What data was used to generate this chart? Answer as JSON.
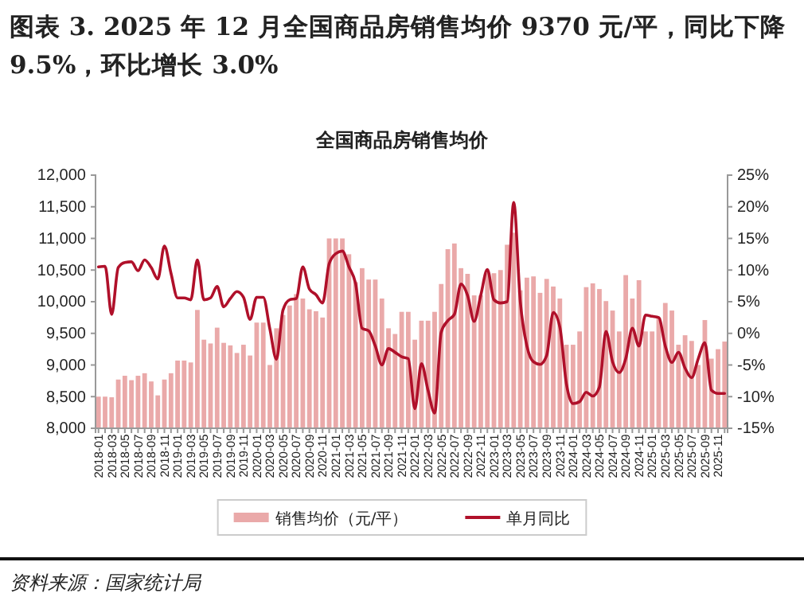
{
  "chart_data": {
    "type": "bar",
    "title": "图表 3. 2025 年 12 月全国商品房销售均价 9370 元/平，同比下降 9.5%，环比增长 3.0%",
    "subtitle": "全国商品房销售均价",
    "annotations": [
      "资料来源：国家统计局"
    ],
    "categories": [
      "2018-01",
      null,
      "2018-03",
      null,
      "2018-05",
      null,
      "2018-07",
      null,
      "2018-09",
      null,
      "2018-11",
      null,
      "2019-01",
      null,
      "2019-03",
      null,
      "2019-05",
      null,
      "2019-07",
      null,
      "2019-09",
      null,
      "2019-11",
      null,
      "2020-01",
      null,
      "2020-03",
      null,
      "2020-05",
      null,
      "2020-07",
      null,
      "2020-09",
      null,
      "2020-11",
      null,
      "2021-01",
      null,
      "2021-03",
      null,
      "2021-05",
      null,
      "2021-07",
      null,
      "2021-09",
      null,
      "2021-11",
      null,
      "2022-01",
      null,
      "2022-03",
      null,
      "2022-05",
      null,
      "2022-07",
      null,
      "2022-09",
      null,
      "2022-11",
      null,
      "2023-01",
      null,
      "2023-03",
      null,
      "2023-05",
      null,
      "2023-07",
      null,
      "2023-09",
      null,
      "2023-11",
      null,
      "2024-01",
      null,
      "2024-03",
      null,
      "2024-05",
      null,
      "2024-07",
      null,
      "2024-09",
      null,
      "2024-11",
      null,
      "2025-01",
      null,
      "2025-03",
      null,
      "2025-05",
      null,
      "2025-07",
      null,
      "2025-09",
      null,
      "2025-11",
      null
    ],
    "series": [
      {
        "name": "销售均价（元/平）",
        "color": "#eaa9a9",
        "values": [
          8500,
          8500,
          8490,
          8770,
          8830,
          8760,
          8830,
          8870,
          8740,
          8520,
          8770,
          8870,
          9070,
          9070,
          9040,
          9870,
          9400,
          9340,
          9590,
          9350,
          9310,
          9190,
          9320,
          9150,
          9670,
          9670,
          9000,
          9580,
          9790,
          9940,
          10120,
          10050,
          9880,
          9850,
          9750,
          11000,
          11000,
          11000,
          10750,
          10310,
          10530,
          10350,
          10350,
          10050,
          9580,
          9490,
          9840,
          9840,
          9400,
          9700,
          9700,
          9840,
          10280,
          10830,
          10920,
          10530,
          10440,
          10100,
          10100,
          10450,
          10450,
          10500,
          10900,
          11090,
          10180,
          10380,
          10400,
          10140,
          10360,
          10240,
          10050,
          9320,
          9320,
          9530,
          10230,
          10290,
          10200,
          10010,
          9860,
          9530,
          10420,
          10050,
          10340,
          9530,
          9530,
          9750,
          9980,
          9860,
          9320,
          9470,
          9380,
          9000,
          9710,
          9100,
          9250,
          9370
        ]
      },
      {
        "name": "单月同比",
        "type": "line",
        "axis": "y2",
        "color": "#b0102a",
        "values": [
          10.5,
          10.6,
          3.0,
          10.4,
          11.2,
          11.3,
          9.9,
          11.6,
          10.4,
          8.6,
          13.8,
          9.5,
          5.6,
          5.6,
          5.3,
          11.6,
          5.3,
          5.6,
          7.4,
          4.2,
          5.5,
          6.6,
          5.7,
          2.2,
          5.7,
          5.7,
          0.7,
          -4.1,
          3.7,
          5.3,
          5.5,
          10.5,
          7.0,
          6.1,
          4.8,
          11.0,
          12.6,
          13.0,
          10.5,
          7.9,
          0.8,
          0.4,
          -2.0,
          -5.0,
          -2.4,
          -3.0,
          -3.7,
          -4.0,
          -11.9,
          -4.8,
          -9.0,
          -12.6,
          0.2,
          2.0,
          3.0,
          7.8,
          6.0,
          1.9,
          6.0,
          10.1,
          5.3,
          4.8,
          5.0,
          20.7,
          5.0,
          -2.0,
          -4.5,
          -4.9,
          -3.5,
          3.3,
          1.0,
          -8.0,
          -11.1,
          -10.8,
          -9.3,
          -9.9,
          -8.5,
          0.3,
          -4.5,
          -6.2,
          -4.0,
          0.8,
          -2.0,
          2.9,
          2.7,
          2.5,
          -2.0,
          -4.6,
          -3.0,
          -5.5,
          -7.0,
          -4.0,
          -1.5,
          -9.0,
          -9.5,
          -9.5
        ]
      }
    ],
    "ylim": [
      8000,
      12000
    ],
    "yticks": [
      {
        "value": 8000,
        "label": "8,000"
      },
      {
        "value": 8500,
        "label": "8,500"
      },
      {
        "value": 9000,
        "label": "9,000"
      },
      {
        "value": 9500,
        "label": "9,500"
      },
      {
        "value": 10000,
        "label": "10,000"
      },
      {
        "value": 10500,
        "label": "10,500"
      },
      {
        "value": 11000,
        "label": "11,000"
      },
      {
        "value": 11500,
        "label": "11,500"
      },
      {
        "value": 12000,
        "label": "12,000"
      }
    ],
    "y2lim": [
      -15,
      25
    ],
    "y2ticks": [
      {
        "value": -15,
        "label": "-15%"
      },
      {
        "value": -10,
        "label": "-10%"
      },
      {
        "value": -5,
        "label": "-5%"
      },
      {
        "value": 0,
        "label": "0%"
      },
      {
        "value": 5,
        "label": "5%"
      },
      {
        "value": 10,
        "label": "10%"
      },
      {
        "value": 15,
        "label": "15%"
      },
      {
        "value": 20,
        "label": "20%"
      },
      {
        "value": 25,
        "label": "25%"
      }
    ],
    "legend": "bottom",
    "grid": false
  }
}
